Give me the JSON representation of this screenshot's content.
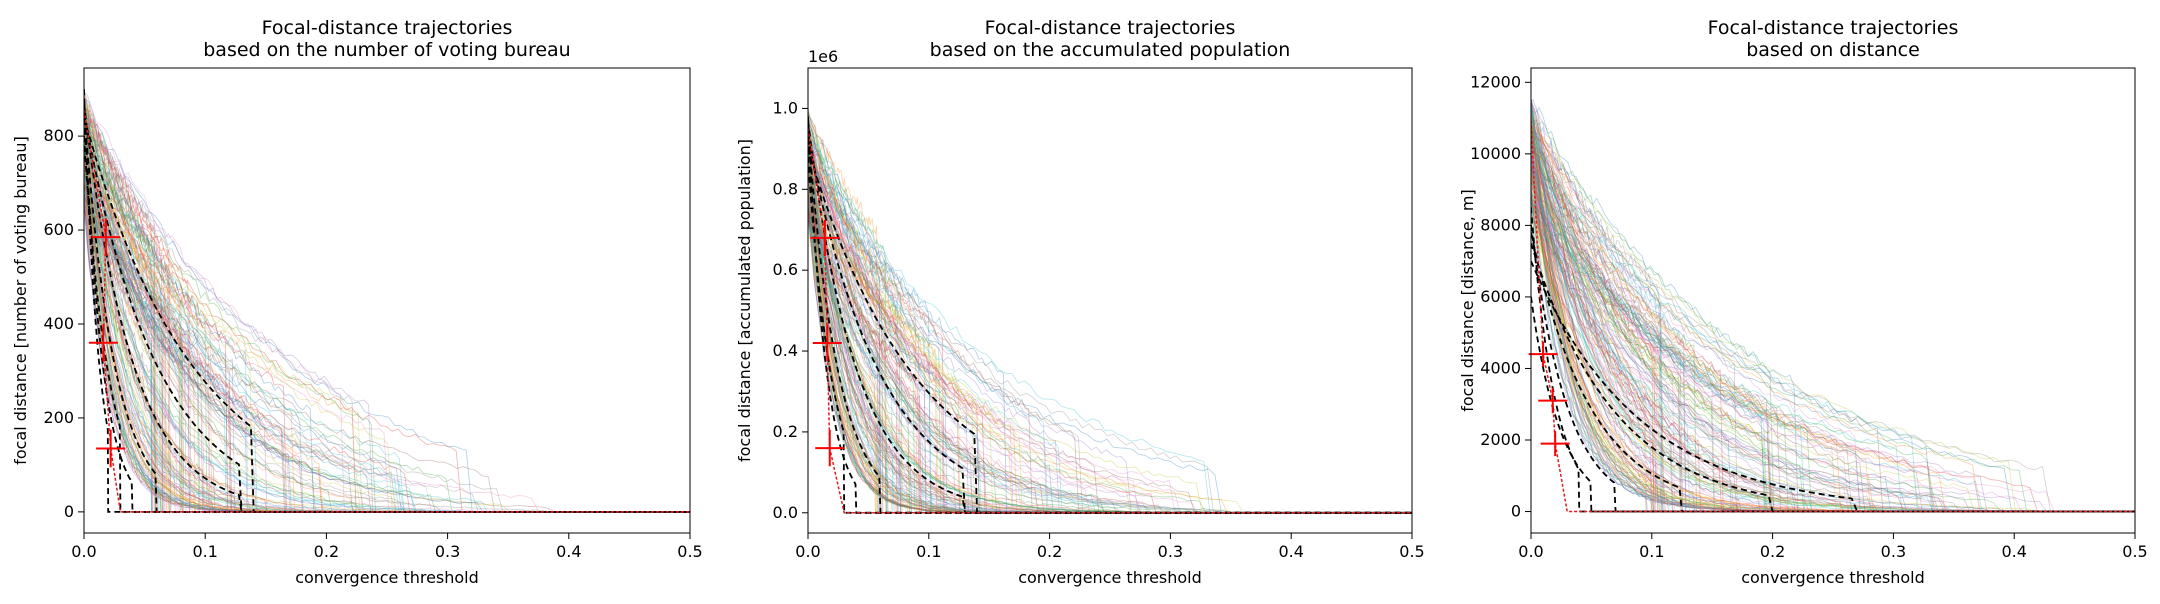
{
  "chart_data": [
    {
      "type": "line",
      "title": "Focal-distance trajectories\nbased on the number of voting bureau",
      "xlabel": "convergence threshold",
      "ylabel": "focal distance [number of voting bureau]",
      "offset_text": "",
      "xlim": [
        0,
        0.5
      ],
      "ylim": [
        -45,
        945
      ],
      "xticks": [
        0,
        0.1,
        0.2,
        0.3,
        0.4,
        0.5
      ],
      "xtick_labels": [
        "0.0",
        "0.1",
        "0.2",
        "0.3",
        "0.4",
        "0.5"
      ],
      "yticks": [
        0,
        200,
        400,
        600,
        800
      ],
      "ytick_labels": [
        "0",
        "200",
        "400",
        "600",
        "800"
      ],
      "grid": false,
      "y_start_max": 900,
      "background_curves": {
        "count": 180,
        "decay_range": [
          0.02,
          0.18
        ],
        "tail_to": [
          0.06,
          0.42
        ]
      },
      "dashed_curves": [
        {
          "start": 880,
          "decay": 0.015,
          "end": 0.04
        },
        {
          "start": 860,
          "decay": 0.025,
          "end": 0.06
        },
        {
          "start": 870,
          "decay": 0.04,
          "end": 0.13
        },
        {
          "start": 850,
          "decay": 0.06,
          "end": 0.13
        },
        {
          "start": 840,
          "decay": 0.09,
          "end": 0.14
        },
        {
          "start": 800,
          "decay": 0.02,
          "end": 0.03
        },
        {
          "start": 900,
          "decay": 0.012,
          "end": 0.02
        }
      ],
      "red_markers": [
        {
          "x": 0.018,
          "y": 585,
          "dx": 0.012,
          "dy": 40
        },
        {
          "x": 0.016,
          "y": 360,
          "dx": 0.012,
          "dy": 40
        },
        {
          "x": 0.022,
          "y": 135,
          "dx": 0.012,
          "dy": 40
        }
      ]
    },
    {
      "type": "line",
      "title": "Focal-distance trajectories\nbased on the accumulated population",
      "xlabel": "convergence threshold",
      "ylabel": "focal distance [accumulated population]",
      "offset_text": "1e6",
      "xlim": [
        0,
        0.5
      ],
      "ylim": [
        -0.05,
        1.1
      ],
      "xticks": [
        0,
        0.1,
        0.2,
        0.3,
        0.4,
        0.5
      ],
      "xtick_labels": [
        "0.0",
        "0.1",
        "0.2",
        "0.3",
        "0.4",
        "0.5"
      ],
      "yticks": [
        0,
        0.2,
        0.4,
        0.6,
        0.8,
        1.0
      ],
      "ytick_labels": [
        "0.0",
        "0.2",
        "0.4",
        "0.6",
        "0.8",
        "1.0"
      ],
      "grid": false,
      "y_start_max": 1.0,
      "background_curves": {
        "count": 180,
        "decay_range": [
          0.02,
          0.17
        ],
        "tail_to": [
          0.06,
          0.4
        ]
      },
      "dashed_curves": [
        {
          "start": 0.98,
          "decay": 0.015,
          "end": 0.04
        },
        {
          "start": 0.95,
          "decay": 0.025,
          "end": 0.06
        },
        {
          "start": 0.97,
          "decay": 0.04,
          "end": 0.13
        },
        {
          "start": 0.93,
          "decay": 0.06,
          "end": 0.13
        },
        {
          "start": 0.9,
          "decay": 0.09,
          "end": 0.14
        },
        {
          "start": 0.88,
          "decay": 0.02,
          "end": 0.03
        }
      ],
      "red_markers": [
        {
          "x": 0.014,
          "y": 0.68,
          "dx": 0.012,
          "dy": 0.045
        },
        {
          "x": 0.016,
          "y": 0.42,
          "dx": 0.012,
          "dy": 0.045
        },
        {
          "x": 0.018,
          "y": 0.16,
          "dx": 0.012,
          "dy": 0.045
        }
      ]
    },
    {
      "type": "line",
      "title": "Focal-distance trajectories\nbased on distance",
      "xlabel": "convergence threshold",
      "ylabel": "focal distance [distance, m]",
      "offset_text": "",
      "xlim": [
        0,
        0.5
      ],
      "ylim": [
        -600,
        12400
      ],
      "xticks": [
        0,
        0.1,
        0.2,
        0.3,
        0.4,
        0.5
      ],
      "xtick_labels": [
        "0.0",
        "0.1",
        "0.2",
        "0.3",
        "0.4",
        "0.5"
      ],
      "yticks": [
        0,
        2000,
        4000,
        6000,
        8000,
        10000,
        12000
      ],
      "ytick_labels": [
        "0",
        "2000",
        "4000",
        "6000",
        "8000",
        "10000",
        "12000"
      ],
      "grid": false,
      "y_start_max": 11500,
      "background_curves": {
        "count": 180,
        "decay_range": [
          0.03,
          0.2
        ],
        "tail_to": [
          0.1,
          0.47
        ]
      },
      "dashed_curves": [
        {
          "start": 8500,
          "decay": 0.02,
          "end": 0.04
        },
        {
          "start": 8000,
          "decay": 0.03,
          "end": 0.07
        },
        {
          "start": 7800,
          "decay": 0.05,
          "end": 0.125
        },
        {
          "start": 7500,
          "decay": 0.07,
          "end": 0.2
        },
        {
          "start": 7000,
          "decay": 0.09,
          "end": 0.27
        },
        {
          "start": 6000,
          "decay": 0.025,
          "end": 0.05
        }
      ],
      "red_markers": [
        {
          "x": 0.01,
          "y": 4400,
          "dx": 0.012,
          "dy": 350
        },
        {
          "x": 0.018,
          "y": 3100,
          "dx": 0.012,
          "dy": 350
        },
        {
          "x": 0.02,
          "y": 1900,
          "dx": 0.012,
          "dy": 350
        }
      ]
    }
  ]
}
